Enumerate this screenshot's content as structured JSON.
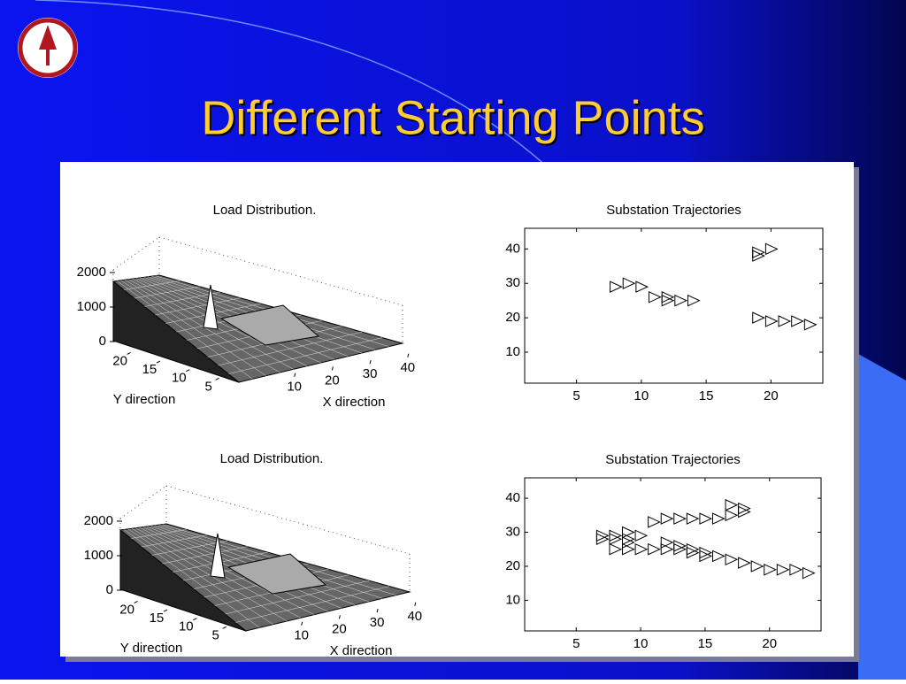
{
  "slide": {
    "title": "Different Starting Points"
  },
  "chart_data": [
    {
      "type": "surface",
      "title": "Load Distribution.",
      "xlabel": "X direction",
      "ylabel": "Y direction",
      "xlim": [
        0,
        45
      ],
      "xticks": [
        10,
        20,
        30,
        40
      ],
      "ylim": [
        0,
        25
      ],
      "yticks": [
        5,
        10,
        15,
        20
      ],
      "zlim": [
        0,
        2000
      ],
      "zticks": [
        0,
        1000,
        2000
      ]
    },
    {
      "type": "scatter",
      "title": "Substation Trajectories",
      "marker": "triangle-right",
      "color": "#000000",
      "xlim": [
        1,
        24
      ],
      "xticks": [
        5,
        10,
        15,
        20
      ],
      "ylim": [
        1,
        46
      ],
      "yticks": [
        10,
        20,
        30,
        40
      ],
      "x": [
        8,
        9,
        10,
        11,
        12,
        12,
        13,
        14,
        19,
        19,
        20,
        19,
        20,
        21,
        22,
        23
      ],
      "values": [
        29,
        30,
        29,
        26,
        26,
        25,
        25,
        25,
        38,
        39,
        40,
        20,
        19,
        19,
        19,
        18
      ]
    },
    {
      "type": "surface",
      "title": "Load Distribution.",
      "xlabel": "X direction",
      "ylabel": "Y direction",
      "xlim": [
        0,
        45
      ],
      "xticks": [
        10,
        20,
        30,
        40
      ],
      "ylim": [
        0,
        25
      ],
      "yticks": [
        5,
        10,
        15,
        20
      ],
      "zlim": [
        0,
        2000
      ],
      "zticks": [
        0,
        1000,
        2000
      ]
    },
    {
      "type": "scatter",
      "title": "Substation Trajectories",
      "marker": "triangle-right",
      "color": "#000000",
      "xlim": [
        1,
        24
      ],
      "xticks": [
        5,
        10,
        15,
        20
      ],
      "ylim": [
        1,
        46
      ],
      "yticks": [
        10,
        20,
        30,
        40
      ],
      "x": [
        7,
        8,
        9,
        7,
        8,
        9,
        9,
        10,
        8,
        9,
        10,
        11,
        12,
        13,
        14,
        15,
        16,
        17,
        18,
        19,
        20,
        21,
        22,
        23,
        11,
        12,
        13,
        14,
        15,
        16,
        17,
        18,
        17,
        18,
        12,
        13,
        14,
        15
      ],
      "values": [
        28,
        28,
        28,
        29,
        29,
        27,
        30,
        29,
        25,
        25,
        25,
        25,
        25,
        25,
        24,
        23,
        23,
        22,
        21,
        20,
        19,
        19,
        19,
        18,
        33,
        34,
        34,
        34,
        34,
        34,
        35,
        36,
        38,
        37,
        27,
        26,
        25,
        24
      ]
    }
  ]
}
